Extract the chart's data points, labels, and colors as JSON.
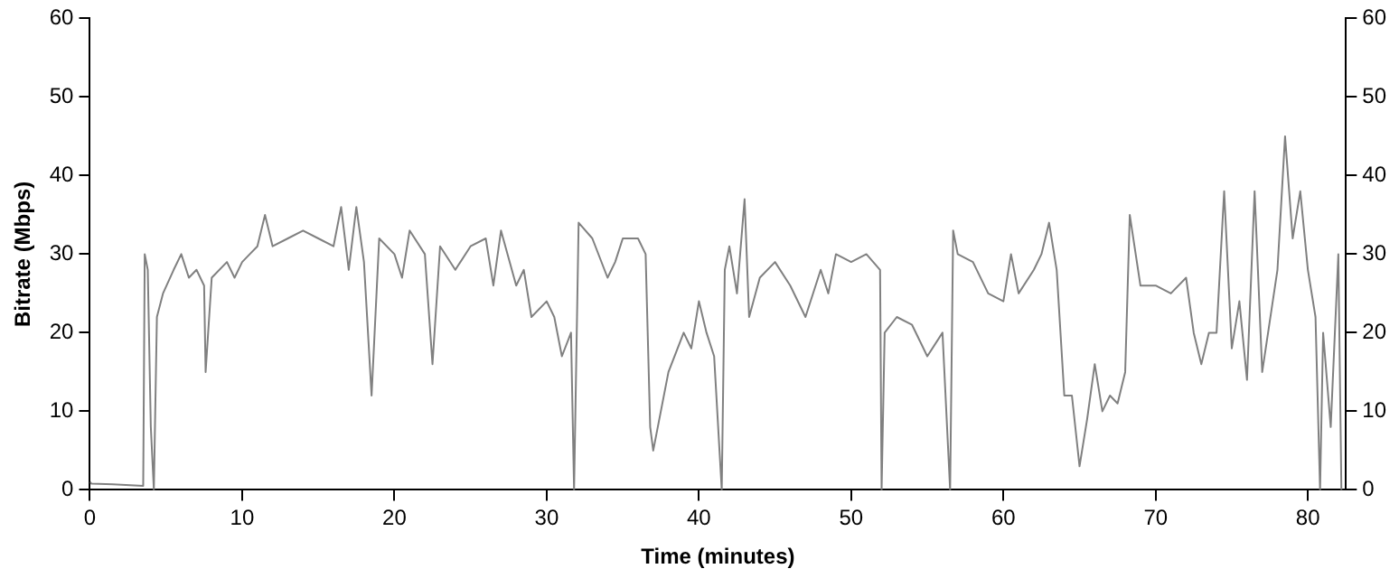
{
  "chart_data": {
    "type": "line",
    "xlabel": "Time (minutes)",
    "ylabel": "Bitrate (Mbps)",
    "xlim": [
      0,
      82.5
    ],
    "xticks": [
      0,
      10,
      20,
      30,
      40,
      50,
      60,
      70,
      80
    ],
    "ylim": [
      0,
      60
    ],
    "yticks": [
      0,
      10,
      20,
      30,
      40,
      50,
      60
    ],
    "y2lim": [
      0,
      60
    ],
    "y2ticks": [
      0,
      10,
      20,
      30,
      40,
      50,
      60
    ],
    "grid": false,
    "legend": false,
    "marker": "none",
    "line_style": "solid",
    "series": [
      {
        "color": "#808080",
        "x": [
          0,
          0.1,
          1.5,
          3.5,
          3.6,
          3.8,
          4.0,
          4.2,
          4.4,
          4.8,
          5.5,
          6,
          6.5,
          7,
          7.5,
          7.6,
          8,
          9,
          9.5,
          10,
          10.5,
          11,
          11.5,
          12,
          13,
          14,
          15,
          16,
          16.5,
          17,
          17.5,
          18,
          18.5,
          19,
          20,
          20.5,
          21,
          22,
          22.5,
          23,
          24,
          25,
          26,
          26.5,
          27,
          28,
          28.5,
          29,
          30,
          30.5,
          31,
          31.6,
          31.8,
          32.1,
          33,
          34,
          34.5,
          35,
          36,
          36.5,
          36.8,
          37,
          37.5,
          38,
          39,
          39.5,
          40,
          40.5,
          41,
          41.5,
          41.7,
          42,
          42.5,
          43,
          43.3,
          44,
          45,
          46,
          47,
          48,
          48.5,
          49,
          50,
          51,
          51.9,
          52,
          52.2,
          53,
          54,
          55,
          56,
          56.5,
          56.7,
          57,
          58,
          59,
          60,
          60.5,
          61,
          62,
          62.5,
          63,
          63.5,
          64,
          64.5,
          65,
          65.5,
          66,
          66.5,
          67,
          67.5,
          68,
          68.3,
          69,
          70,
          71,
          72,
          72.5,
          73,
          73.5,
          74,
          74.5,
          75,
          75.5,
          76,
          76.5,
          77,
          78,
          78.5,
          79,
          79.5,
          80,
          80.5,
          80.8,
          81,
          81.5,
          82,
          82.2
        ],
        "values": [
          1,
          0.8,
          0.7,
          0.5,
          30,
          28,
          8,
          0,
          22,
          25,
          28,
          30,
          27,
          28,
          26,
          15,
          27,
          29,
          27,
          29,
          30,
          31,
          35,
          31,
          32,
          33,
          32,
          31,
          36,
          28,
          36,
          29,
          12,
          32,
          30,
          27,
          33,
          30,
          16,
          31,
          28,
          31,
          32,
          26,
          33,
          26,
          28,
          22,
          24,
          22,
          17,
          20,
          0,
          34,
          32,
          27,
          29,
          32,
          32,
          30,
          8,
          5,
          10,
          15,
          20,
          18,
          24,
          20,
          17,
          0,
          28,
          31,
          25,
          37,
          22,
          27,
          29,
          26,
          22,
          28,
          25,
          30,
          29,
          30,
          28,
          0,
          20,
          22,
          21,
          17,
          20,
          0,
          33,
          30,
          29,
          25,
          24,
          30,
          25,
          28,
          30,
          34,
          28,
          12,
          12,
          3,
          9,
          16,
          10,
          12,
          11,
          15,
          35,
          26,
          26,
          25,
          27,
          20,
          16,
          20,
          20,
          38,
          18,
          24,
          14,
          38,
          15,
          28,
          45,
          32,
          38,
          28,
          22,
          0,
          20,
          8,
          30,
          0
        ]
      }
    ]
  }
}
